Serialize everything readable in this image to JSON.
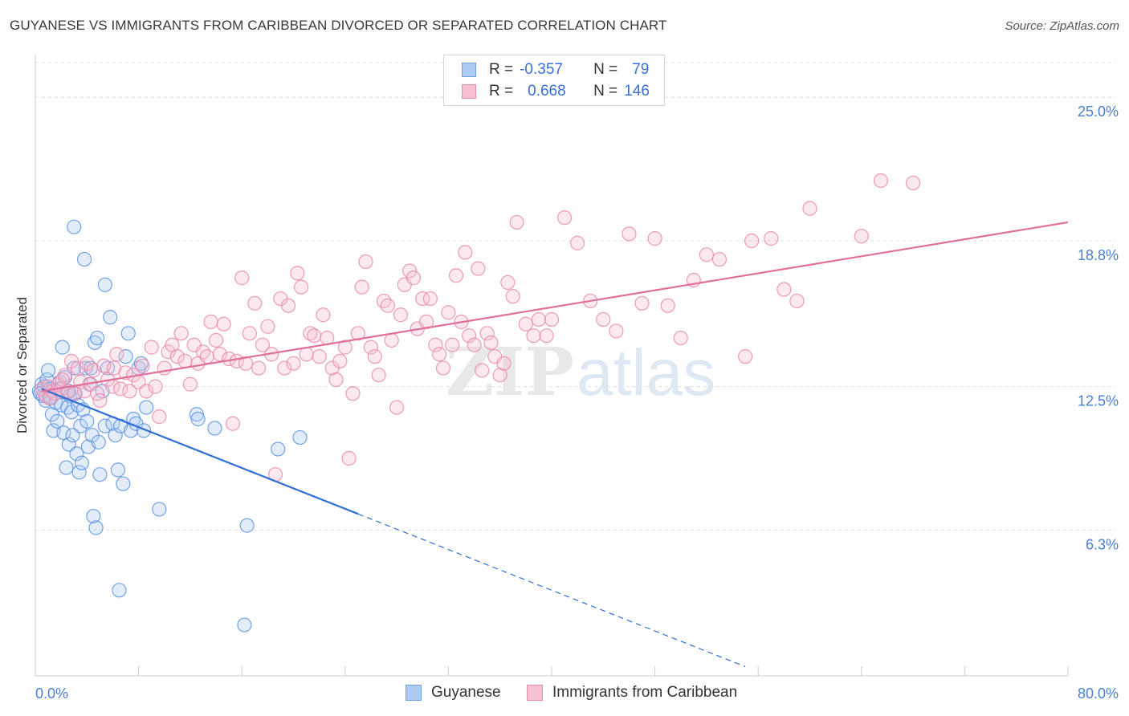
{
  "title": "GUYANESE VS IMMIGRANTS FROM CARIBBEAN DIVORCED OR SEPARATED CORRELATION CHART",
  "source": "Source: ZipAtlas.com",
  "watermark": {
    "zip": "ZIP",
    "atlas": "atlas"
  },
  "legend": {
    "r_label": "R =",
    "n_label": "N =",
    "rows": [
      {
        "r": "-0.357",
        "n": "79",
        "fill": "#aecbf2",
        "stroke": "#6f9fe0"
      },
      {
        "r": "0.668",
        "n": "146",
        "fill": "#f7c1d2",
        "stroke": "#e98aaa"
      }
    ]
  },
  "bottom_legend": [
    {
      "label": "Guyanese",
      "fill": "#aecbf2",
      "stroke": "#6f9fe0"
    },
    {
      "label": "Immigrants from Caribbean",
      "fill": "#f7c1d2",
      "stroke": "#e98aaa"
    }
  ],
  "chart_data": {
    "type": "scatter",
    "title": "GUYANESE VS IMMIGRANTS FROM CARIBBEAN DIVORCED OR SEPARATED CORRELATION CHART",
    "xlabel": "",
    "ylabel": "Divorced or Separated",
    "xlim": [
      0,
      80
    ],
    "ylim": [
      0,
      26.5
    ],
    "x_tick_labels": [
      "0.0%",
      "80.0%"
    ],
    "y_ticks": [
      6.3,
      12.5,
      18.8,
      25.0
    ],
    "y_tick_labels": [
      "6.3%",
      "12.5%",
      "18.8%",
      "25.0%"
    ],
    "grid": true,
    "series": [
      {
        "name": "Guyanese",
        "color": "#5b93e0",
        "line_color": "#2f6fd6",
        "trend": {
          "x0": 0.5,
          "y0": 12.4,
          "x1": 25,
          "y1": 7.0,
          "dash_x1": 55,
          "dash_y1": 0.4
        },
        "points": [
          [
            0.3,
            12.3
          ],
          [
            0.5,
            12.6
          ],
          [
            0.6,
            12.1
          ],
          [
            0.7,
            12.5
          ],
          [
            0.8,
            11.9
          ],
          [
            0.9,
            12.8
          ],
          [
            1.0,
            13.2
          ],
          [
            1.1,
            12.4
          ],
          [
            1.2,
            12.0
          ],
          [
            1.3,
            11.3
          ],
          [
            1.4,
            10.6
          ],
          [
            1.5,
            12.2
          ],
          [
            1.6,
            11.8
          ],
          [
            1.7,
            11.0
          ],
          [
            1.8,
            12.4
          ],
          [
            1.9,
            12.7
          ],
          [
            2.0,
            11.7
          ],
          [
            2.1,
            14.2
          ],
          [
            2.2,
            10.5
          ],
          [
            2.3,
            12.9
          ],
          [
            2.4,
            9.0
          ],
          [
            2.5,
            11.6
          ],
          [
            2.6,
            10.0
          ],
          [
            2.7,
            12.1
          ],
          [
            2.8,
            11.4
          ],
          [
            2.9,
            10.4
          ],
          [
            3.0,
            13.3
          ],
          [
            3.0,
            19.4
          ],
          [
            3.1,
            12.2
          ],
          [
            3.2,
            9.6
          ],
          [
            3.3,
            11.7
          ],
          [
            3.4,
            8.8
          ],
          [
            3.5,
            10.8
          ],
          [
            3.6,
            9.2
          ],
          [
            3.7,
            11.5
          ],
          [
            3.8,
            18.0
          ],
          [
            3.9,
            13.3
          ],
          [
            4.0,
            11.0
          ],
          [
            4.1,
            9.9
          ],
          [
            4.2,
            12.6
          ],
          [
            4.3,
            13.3
          ],
          [
            4.4,
            10.4
          ],
          [
            4.5,
            6.9
          ],
          [
            4.6,
            14.4
          ],
          [
            4.7,
            6.4
          ],
          [
            4.8,
            14.6
          ],
          [
            4.9,
            10.1
          ],
          [
            5.0,
            8.7
          ],
          [
            5.2,
            12.3
          ],
          [
            5.4,
            10.8
          ],
          [
            5.6,
            13.3
          ],
          [
            5.8,
            15.5
          ],
          [
            5.4,
            16.9
          ],
          [
            6.0,
            10.9
          ],
          [
            6.2,
            10.4
          ],
          [
            6.4,
            8.9
          ],
          [
            6.5,
            3.7
          ],
          [
            6.6,
            10.8
          ],
          [
            6.8,
            8.3
          ],
          [
            7.0,
            13.8
          ],
          [
            7.2,
            14.8
          ],
          [
            7.4,
            10.6
          ],
          [
            7.6,
            11.1
          ],
          [
            7.8,
            10.9
          ],
          [
            8.0,
            13.3
          ],
          [
            8.2,
            13.5
          ],
          [
            8.4,
            10.6
          ],
          [
            8.6,
            11.6
          ],
          [
            9.6,
            7.2
          ],
          [
            12.5,
            11.3
          ],
          [
            12.6,
            11.1
          ],
          [
            13.9,
            10.7
          ],
          [
            16.2,
            2.2
          ],
          [
            16.4,
            6.5
          ],
          [
            18.8,
            9.8
          ],
          [
            20.5,
            10.3
          ],
          [
            0.4,
            12.2
          ],
          [
            1.2,
            12.4
          ],
          [
            2.6,
            12.3
          ]
        ]
      },
      {
        "name": "Immigrants from Caribbean",
        "color": "#e98aaa",
        "line_color": "#e0709a",
        "trend": {
          "x0": 0.5,
          "y0": 12.3,
          "x1": 80,
          "y1": 19.6
        },
        "points": [
          [
            0.5,
            12.4
          ],
          [
            0.8,
            12.1
          ],
          [
            1.0,
            12.5
          ],
          [
            1.3,
            12.3
          ],
          [
            1.5,
            12.2
          ],
          [
            1.8,
            12.6
          ],
          [
            2.0,
            12.4
          ],
          [
            2.3,
            13.0
          ],
          [
            2.5,
            12.3
          ],
          [
            2.8,
            13.6
          ],
          [
            3.0,
            12.2
          ],
          [
            3.3,
            13.3
          ],
          [
            3.5,
            12.7
          ],
          [
            3.8,
            12.3
          ],
          [
            4.0,
            13.5
          ],
          [
            4.3,
            12.6
          ],
          [
            4.5,
            13.2
          ],
          [
            4.8,
            12.2
          ],
          [
            5.0,
            11.9
          ],
          [
            5.3,
            13.4
          ],
          [
            5.6,
            12.8
          ],
          [
            6.0,
            12.5
          ],
          [
            6.3,
            13.9
          ],
          [
            6.6,
            12.4
          ],
          [
            7.0,
            13.1
          ],
          [
            7.3,
            12.3
          ],
          [
            7.6,
            13.0
          ],
          [
            8.0,
            12.7
          ],
          [
            8.3,
            13.4
          ],
          [
            8.6,
            12.3
          ],
          [
            9.0,
            14.2
          ],
          [
            9.3,
            12.5
          ],
          [
            9.6,
            11.2
          ],
          [
            10.0,
            13.3
          ],
          [
            10.3,
            14.0
          ],
          [
            10.6,
            14.3
          ],
          [
            11.0,
            13.8
          ],
          [
            11.3,
            14.8
          ],
          [
            11.6,
            13.6
          ],
          [
            12.0,
            12.6
          ],
          [
            12.3,
            14.3
          ],
          [
            12.6,
            13.5
          ],
          [
            13.0,
            14.0
          ],
          [
            13.3,
            13.8
          ],
          [
            13.6,
            15.3
          ],
          [
            14.0,
            14.5
          ],
          [
            14.3,
            13.9
          ],
          [
            14.6,
            15.2
          ],
          [
            15.0,
            13.7
          ],
          [
            15.3,
            10.9
          ],
          [
            15.6,
            13.6
          ],
          [
            16.0,
            17.2
          ],
          [
            16.3,
            13.5
          ],
          [
            16.6,
            14.8
          ],
          [
            17.0,
            16.1
          ],
          [
            17.3,
            13.3
          ],
          [
            17.6,
            14.3
          ],
          [
            18.0,
            15.1
          ],
          [
            18.3,
            13.9
          ],
          [
            18.6,
            8.7
          ],
          [
            19.0,
            16.3
          ],
          [
            19.3,
            13.3
          ],
          [
            19.6,
            16.0
          ],
          [
            20.0,
            13.5
          ],
          [
            20.3,
            17.4
          ],
          [
            20.6,
            16.8
          ],
          [
            21.0,
            13.9
          ],
          [
            21.3,
            14.8
          ],
          [
            21.6,
            14.7
          ],
          [
            22.0,
            13.8
          ],
          [
            22.3,
            15.6
          ],
          [
            22.6,
            14.6
          ],
          [
            23.0,
            13.3
          ],
          [
            23.3,
            12.8
          ],
          [
            23.6,
            13.6
          ],
          [
            24.0,
            14.2
          ],
          [
            24.3,
            9.4
          ],
          [
            24.6,
            12.2
          ],
          [
            25.0,
            14.8
          ],
          [
            25.3,
            16.8
          ],
          [
            25.6,
            17.9
          ],
          [
            26.0,
            14.2
          ],
          [
            26.3,
            13.8
          ],
          [
            26.6,
            13.0
          ],
          [
            27.0,
            16.2
          ],
          [
            27.3,
            16.0
          ],
          [
            27.6,
            14.5
          ],
          [
            28.0,
            11.6
          ],
          [
            28.3,
            15.6
          ],
          [
            28.6,
            16.9
          ],
          [
            29.0,
            17.5
          ],
          [
            29.3,
            17.2
          ],
          [
            29.6,
            15.0
          ],
          [
            30.0,
            16.3
          ],
          [
            30.3,
            15.3
          ],
          [
            30.6,
            16.3
          ],
          [
            31.0,
            14.3
          ],
          [
            31.3,
            13.9
          ],
          [
            31.6,
            13.3
          ],
          [
            32.0,
            15.7
          ],
          [
            32.3,
            14.3
          ],
          [
            32.6,
            17.3
          ],
          [
            33.0,
            15.3
          ],
          [
            33.3,
            18.3
          ],
          [
            33.6,
            14.7
          ],
          [
            34.0,
            14.3
          ],
          [
            34.3,
            17.6
          ],
          [
            34.6,
            13.2
          ],
          [
            35.0,
            14.8
          ],
          [
            35.3,
            14.4
          ],
          [
            35.6,
            13.8
          ],
          [
            36.0,
            13.0
          ],
          [
            36.3,
            13.5
          ],
          [
            36.6,
            17.0
          ],
          [
            37.0,
            16.4
          ],
          [
            37.3,
            19.6
          ],
          [
            38.0,
            15.2
          ],
          [
            38.6,
            14.7
          ],
          [
            39.0,
            15.4
          ],
          [
            39.6,
            14.7
          ],
          [
            40.0,
            15.4
          ],
          [
            41.0,
            19.8
          ],
          [
            42.0,
            18.7
          ],
          [
            43.0,
            16.2
          ],
          [
            44.0,
            15.4
          ],
          [
            45.0,
            14.9
          ],
          [
            46.0,
            19.1
          ],
          [
            47.0,
            16.1
          ],
          [
            48.0,
            18.9
          ],
          [
            49.0,
            16.0
          ],
          [
            50.0,
            14.6
          ],
          [
            51.0,
            17.1
          ],
          [
            52.0,
            18.2
          ],
          [
            53.0,
            18.0
          ],
          [
            55.0,
            13.8
          ],
          [
            55.5,
            18.8
          ],
          [
            57.0,
            18.9
          ],
          [
            58.0,
            16.7
          ],
          [
            59.0,
            16.2
          ],
          [
            60.0,
            20.2
          ],
          [
            64.0,
            19.0
          ],
          [
            65.5,
            21.4
          ],
          [
            68.0,
            21.3
          ],
          [
            1.1,
            12.0
          ],
          [
            2.1,
            12.8
          ],
          [
            6.1,
            13.3
          ]
        ]
      }
    ]
  }
}
